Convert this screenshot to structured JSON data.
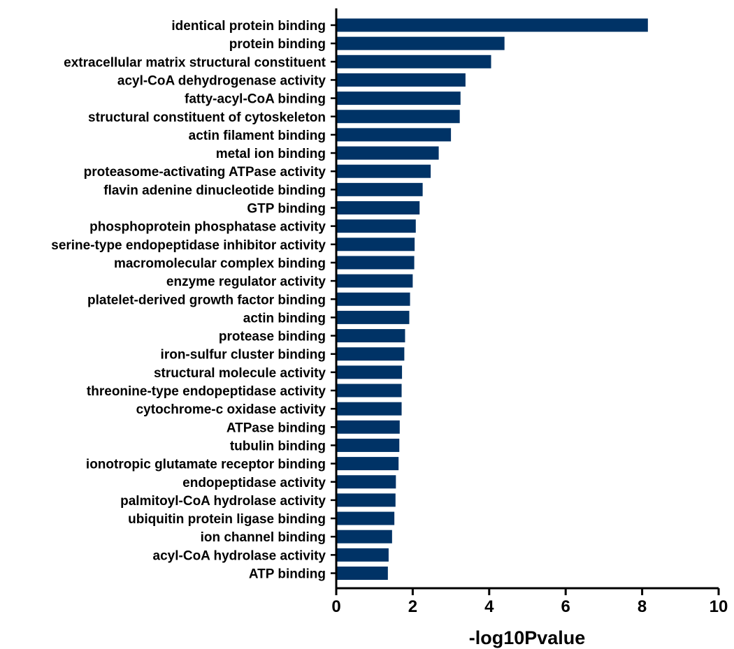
{
  "chart_data": {
    "type": "bar",
    "orientation": "horizontal",
    "title": "",
    "xlabel": "-log10Pvalue",
    "ylabel": "",
    "xlim": [
      0,
      10
    ],
    "xticks": [
      "0",
      "2",
      "4",
      "6",
      "8",
      "10"
    ],
    "grid": false,
    "legend": "none",
    "bar_color": "#003366",
    "categories": [
      "identical protein binding",
      "protein binding",
      "extracellular matrix structural constituent",
      "acyl-CoA dehydrogenase activity",
      "fatty-acyl-CoA binding",
      "structural constituent of cytoskeleton",
      "actin filament binding",
      "metal ion binding",
      "proteasome-activating ATPase activity",
      "flavin adenine dinucleotide binding",
      "GTP binding",
      "phosphoprotein phosphatase activity",
      "serine-type endopeptidase inhibitor activity",
      "macromolecular complex binding",
      "enzyme regulator activity",
      "platelet-derived growth factor binding",
      "actin binding",
      "protease binding",
      "iron-sulfur cluster binding",
      "structural molecule activity",
      "threonine-type endopeptidase activity",
      "cytochrome-c oxidase activity",
      "ATPase binding",
      "tubulin binding",
      "ionotropic glutamate receptor binding",
      "endopeptidase activity",
      "palmitoyl-CoA hydrolase activity",
      "ubiquitin protein ligase binding",
      "ion channel binding",
      "acyl-CoA hydrolase activity",
      "ATP binding"
    ],
    "values": [
      8.15,
      4.4,
      4.05,
      3.38,
      3.25,
      3.23,
      3.0,
      2.68,
      2.47,
      2.26,
      2.18,
      2.08,
      2.05,
      2.04,
      2.0,
      1.93,
      1.91,
      1.8,
      1.78,
      1.72,
      1.71,
      1.71,
      1.66,
      1.65,
      1.63,
      1.56,
      1.55,
      1.52,
      1.46,
      1.37,
      1.35
    ]
  }
}
